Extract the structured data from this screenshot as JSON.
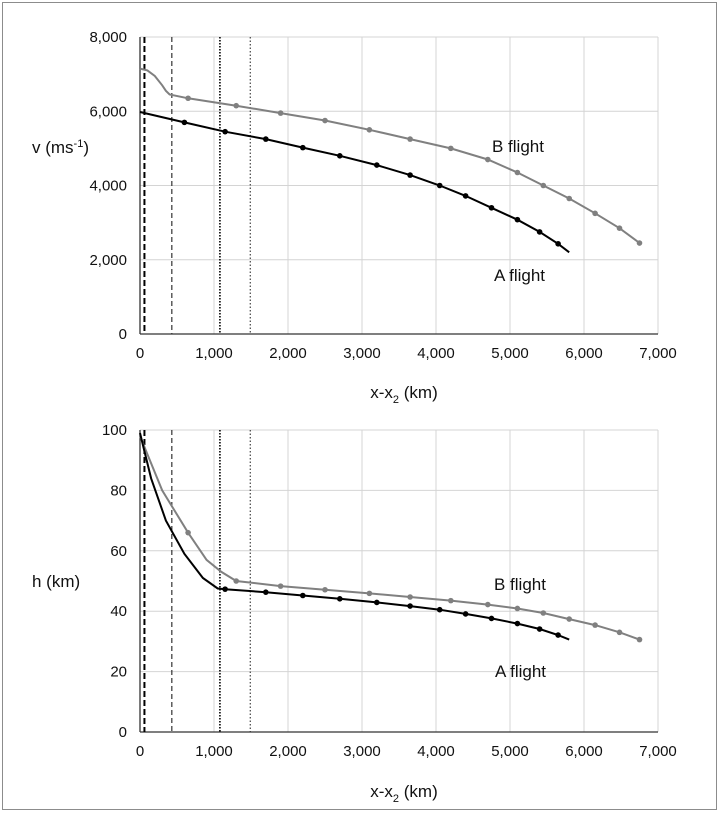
{
  "chart_data": [
    {
      "type": "line",
      "ylabel_main": "v (ms",
      "ylabel_sup": "-1",
      "ylabel_end": ")",
      "xlabel_main": "x-x",
      "xlabel_sub": "2",
      "xlabel_end": " (km)",
      "xlim": [
        0,
        7000
      ],
      "ylim": [
        0,
        8000
      ],
      "xticks": [
        "0",
        "1,000",
        "2,000",
        "3,000",
        "4,000",
        "5,000",
        "6,000",
        "7,000"
      ],
      "yticks": [
        "0",
        "2,000",
        "4,000",
        "6,000",
        "8,000"
      ],
      "grid": true,
      "reference_lines": [
        {
          "x": 60,
          "style": "dashed-bold"
        },
        {
          "x": 430,
          "style": "dashed"
        },
        {
          "x": 1080,
          "style": "dotted-bold"
        },
        {
          "x": 1490,
          "style": "dotted"
        }
      ],
      "series": [
        {
          "name": "B flight",
          "color": "#808080",
          "x": [
            0,
            100,
            200,
            300,
            350,
            400,
            650,
            1300,
            1900,
            2500,
            3100,
            3650,
            4200,
            4700,
            5100,
            5450,
            5800,
            6150,
            6480,
            6750
          ],
          "y": [
            7150,
            7100,
            6950,
            6700,
            6550,
            6450,
            6350,
            6150,
            5950,
            5750,
            5500,
            5250,
            5000,
            4700,
            4350,
            4000,
            3650,
            3250,
            2850,
            2450
          ],
          "markers_x": [
            650,
            1300,
            1900,
            2500,
            3100,
            3650,
            4200,
            4700,
            5100,
            5450,
            5800,
            6150,
            6480,
            6750
          ],
          "markers_y": [
            6350,
            6150,
            5950,
            5750,
            5500,
            5250,
            5000,
            4700,
            4350,
            4000,
            3650,
            3250,
            2850,
            2450
          ]
        },
        {
          "name": "A flight",
          "color": "#000000",
          "x": [
            0,
            600,
            1150,
            1700,
            2200,
            2700,
            3200,
            3650,
            4050,
            4400,
            4750,
            5100,
            5400,
            5650,
            5800
          ],
          "y": [
            5980,
            5700,
            5450,
            5250,
            5020,
            4800,
            4550,
            4280,
            4000,
            3720,
            3400,
            3080,
            2750,
            2430,
            2200
          ],
          "markers_x": [
            600,
            1150,
            1700,
            2200,
            2700,
            3200,
            3650,
            4050,
            4400,
            4750,
            5100,
            5400,
            5650
          ],
          "markers_y": [
            5700,
            5450,
            5250,
            5020,
            4800,
            4550,
            4280,
            4000,
            3720,
            3400,
            3080,
            2750,
            2430
          ]
        }
      ]
    },
    {
      "type": "line",
      "ylabel_main": "h (km)",
      "xlabel_main": "x-x",
      "xlabel_sub": "2",
      "xlabel_end": " (km)",
      "xlim": [
        0,
        7000
      ],
      "ylim": [
        0,
        100
      ],
      "xticks": [
        "0",
        "1,000",
        "2,000",
        "3,000",
        "4,000",
        "5,000",
        "6,000",
        "7,000"
      ],
      "yticks": [
        "0",
        "20",
        "40",
        "60",
        "80",
        "100"
      ],
      "grid": true,
      "reference_lines": [
        {
          "x": 60,
          "style": "dashed-bold"
        },
        {
          "x": 430,
          "style": "dashed"
        },
        {
          "x": 1080,
          "style": "dotted-bold"
        },
        {
          "x": 1490,
          "style": "dotted"
        }
      ],
      "series": [
        {
          "name": "B flight",
          "color": "#808080",
          "x": [
            0,
            100,
            300,
            650,
            900,
            1100,
            1300,
            1900,
            2500,
            3100,
            3650,
            4200,
            4700,
            5100,
            5450,
            5800,
            6150,
            6480,
            6750
          ],
          "y": [
            98,
            92,
            80,
            66,
            57,
            53,
            50,
            48.3,
            47.1,
            45.9,
            44.7,
            43.5,
            42.2,
            40.9,
            39.4,
            37.4,
            35.4,
            33,
            30.6
          ],
          "markers_x": [
            650,
            1300,
            1900,
            2500,
            3100,
            3650,
            4200,
            4700,
            5100,
            5450,
            5800,
            6150,
            6480,
            6750
          ],
          "markers_y": [
            66,
            50,
            48.3,
            47.1,
            45.9,
            44.7,
            43.5,
            42.2,
            40.9,
            39.4,
            37.4,
            35.4,
            33,
            30.6
          ]
        },
        {
          "name": "A flight",
          "color": "#000000",
          "x": [
            0,
            60,
            150,
            350,
            600,
            850,
            1050,
            1150,
            1700,
            2200,
            2700,
            3200,
            3650,
            4050,
            4400,
            4750,
            5100,
            5400,
            5650,
            5800
          ],
          "y": [
            99,
            93,
            84,
            70,
            59,
            51,
            47.5,
            47.3,
            46.3,
            45.2,
            44.1,
            42.9,
            41.7,
            40.5,
            39.1,
            37.6,
            35.9,
            34.1,
            32.1,
            30.6
          ],
          "markers_x": [
            1150,
            1700,
            2200,
            2700,
            3200,
            3650,
            4050,
            4400,
            4750,
            5100,
            5400,
            5650
          ],
          "markers_y": [
            47.3,
            46.3,
            45.2,
            44.1,
            42.9,
            41.7,
            40.5,
            39.1,
            37.6,
            35.9,
            34.1,
            32.1
          ]
        }
      ]
    }
  ]
}
